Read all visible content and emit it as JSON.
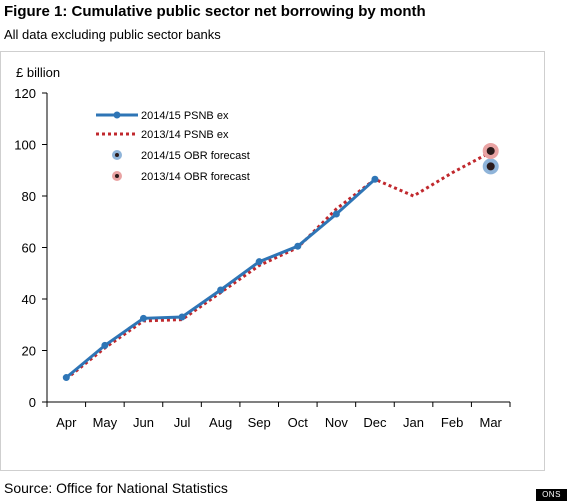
{
  "figure": {
    "title": "Figure 1: Cumulative public sector net borrowing by month",
    "subtitle": "All data excluding public sector banks",
    "source": "Source: Office for National Statistics",
    "badge": "ONS"
  },
  "chart_data": {
    "type": "line",
    "ylabel": "£ billion",
    "xlabel": "",
    "ylim": [
      0,
      120
    ],
    "yticks": [
      0,
      20,
      40,
      60,
      80,
      100,
      120
    ],
    "categories": [
      "Apr",
      "May",
      "Jun",
      "Jul",
      "Aug",
      "Sep",
      "Oct",
      "Nov",
      "Dec",
      "Jan",
      "Feb",
      "Mar"
    ],
    "grid": false,
    "legend_position": "top-left",
    "series": [
      {
        "name": "2014/15 PSNB ex",
        "style": "solid-marker",
        "color": "#2e75b6",
        "values": [
          9.5,
          22,
          32.5,
          33,
          43.5,
          54.5,
          60.5,
          73,
          86.5,
          null,
          null,
          null
        ]
      },
      {
        "name": "2013/14 PSNB ex",
        "style": "dotted",
        "color": "#c0282d",
        "values": [
          9,
          21,
          31.5,
          32,
          42.5,
          53,
          60,
          75,
          86.5,
          80,
          89,
          97
        ]
      }
    ],
    "points": [
      {
        "name": "2014/15 OBR forecast",
        "category": "Mar",
        "value": 91.5,
        "color": "#8fb4d9"
      },
      {
        "name": "2013/14 OBR forecast",
        "category": "Mar",
        "value": 97.5,
        "color": "#e9a3a3"
      }
    ]
  }
}
